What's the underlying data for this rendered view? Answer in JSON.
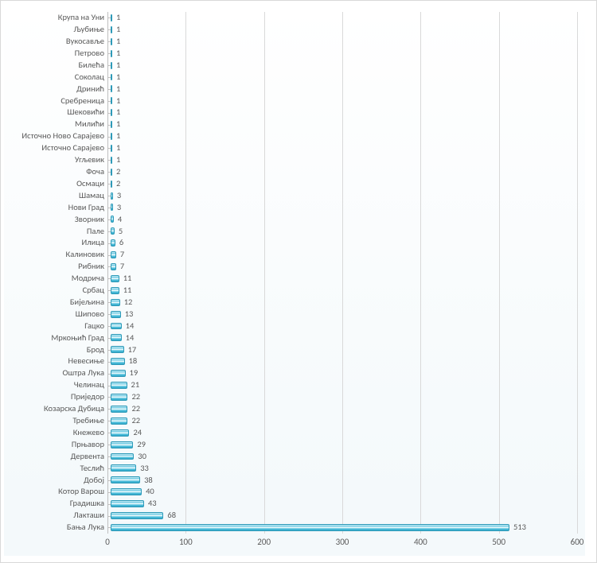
{
  "chart": {
    "type": "bar",
    "orientation": "horizontal",
    "x_axis": {
      "min": 0,
      "max": 600,
      "tick_step": 100,
      "ticks": [
        0,
        100,
        200,
        300,
        400,
        500,
        600
      ],
      "label_color": "#595959",
      "label_fontsize": 11,
      "grid_color": "#d9d9d9"
    },
    "bar_style": {
      "border_color": "#2e9ab8",
      "gradient_top": "#d7f2f9",
      "gradient_mid_light": "#ffffff",
      "gradient_mid": "#6cc9e2",
      "gradient_bottom": "#2fa8c8"
    },
    "background_gradient_top": "#ffffff",
    "background_gradient_bottom": "#f4f9fb",
    "label_color": "#595959",
    "label_fontsize": 10.5,
    "categories": [
      {
        "name": "Крупа на Уни",
        "value": 1
      },
      {
        "name": "Љубиње",
        "value": 1
      },
      {
        "name": "Вукосавље",
        "value": 1
      },
      {
        "name": "Петрово",
        "value": 1
      },
      {
        "name": "Билећа",
        "value": 1
      },
      {
        "name": "Соколац",
        "value": 1
      },
      {
        "name": "Дринић",
        "value": 1
      },
      {
        "name": "Сребреница",
        "value": 1
      },
      {
        "name": "Шековићи",
        "value": 1
      },
      {
        "name": "Милићи",
        "value": 1
      },
      {
        "name": "Источно Ново Сарајево",
        "value": 1
      },
      {
        "name": "Источно Сарајево",
        "value": 1
      },
      {
        "name": "Угљевик",
        "value": 1
      },
      {
        "name": "Фоча",
        "value": 2
      },
      {
        "name": "Осмаци",
        "value": 2
      },
      {
        "name": "Шамац",
        "value": 3
      },
      {
        "name": "Нови Град",
        "value": 3
      },
      {
        "name": "Зворник",
        "value": 4
      },
      {
        "name": "Пале",
        "value": 5
      },
      {
        "name": "Илица",
        "value": 6
      },
      {
        "name": "Калиновик",
        "value": 7
      },
      {
        "name": "Рибник",
        "value": 7
      },
      {
        "name": "Модрича",
        "value": 11
      },
      {
        "name": "Србац",
        "value": 11
      },
      {
        "name": "Бијељина",
        "value": 12
      },
      {
        "name": "Шипово",
        "value": 13
      },
      {
        "name": "Гацко",
        "value": 14
      },
      {
        "name": "Мркоњић Град",
        "value": 14
      },
      {
        "name": "Брод",
        "value": 17
      },
      {
        "name": "Невесиње",
        "value": 18
      },
      {
        "name": "Оштра Лука",
        "value": 19
      },
      {
        "name": "Челинац",
        "value": 21
      },
      {
        "name": "Приједор",
        "value": 22
      },
      {
        "name": "Козарска Дубица",
        "value": 22
      },
      {
        "name": "Требиње",
        "value": 22
      },
      {
        "name": "Кнежево",
        "value": 24
      },
      {
        "name": "Прњавор",
        "value": 29
      },
      {
        "name": "Дервента",
        "value": 30
      },
      {
        "name": "Теслић",
        "value": 33
      },
      {
        "name": "Добој",
        "value": 38
      },
      {
        "name": "Котор Варош",
        "value": 40
      },
      {
        "name": "Градишка",
        "value": 43
      },
      {
        "name": "Лакташи",
        "value": 68
      },
      {
        "name": "Бања Лука",
        "value": 513
      }
    ]
  }
}
